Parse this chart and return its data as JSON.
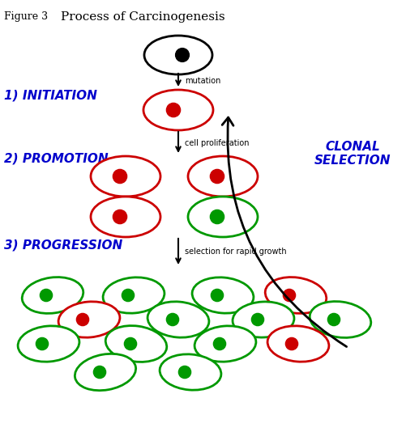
{
  "title_figure": "Figure 3",
  "title_main": "Process of Carcinogenesis",
  "label_initiation": "1) INITIATION",
  "label_promotion": "2) PROMOTION",
  "label_progression": "3) PROGRESSION",
  "label_clonal": "CLONAL\nSELECTION",
  "label_mutation": "mutation",
  "label_cell_prolif": "cell proliferation",
  "label_selection": "selection for rapid growth",
  "bg_color": "#ffffff",
  "text_color_blue": "#0000cc",
  "cell_color_black": "#000000",
  "cell_color_red": "#cc0000",
  "cell_color_green": "#009900",
  "ellipse_lw": 2.0,
  "fig_w": 5.02,
  "fig_h": 5.34,
  "dpi": 100
}
